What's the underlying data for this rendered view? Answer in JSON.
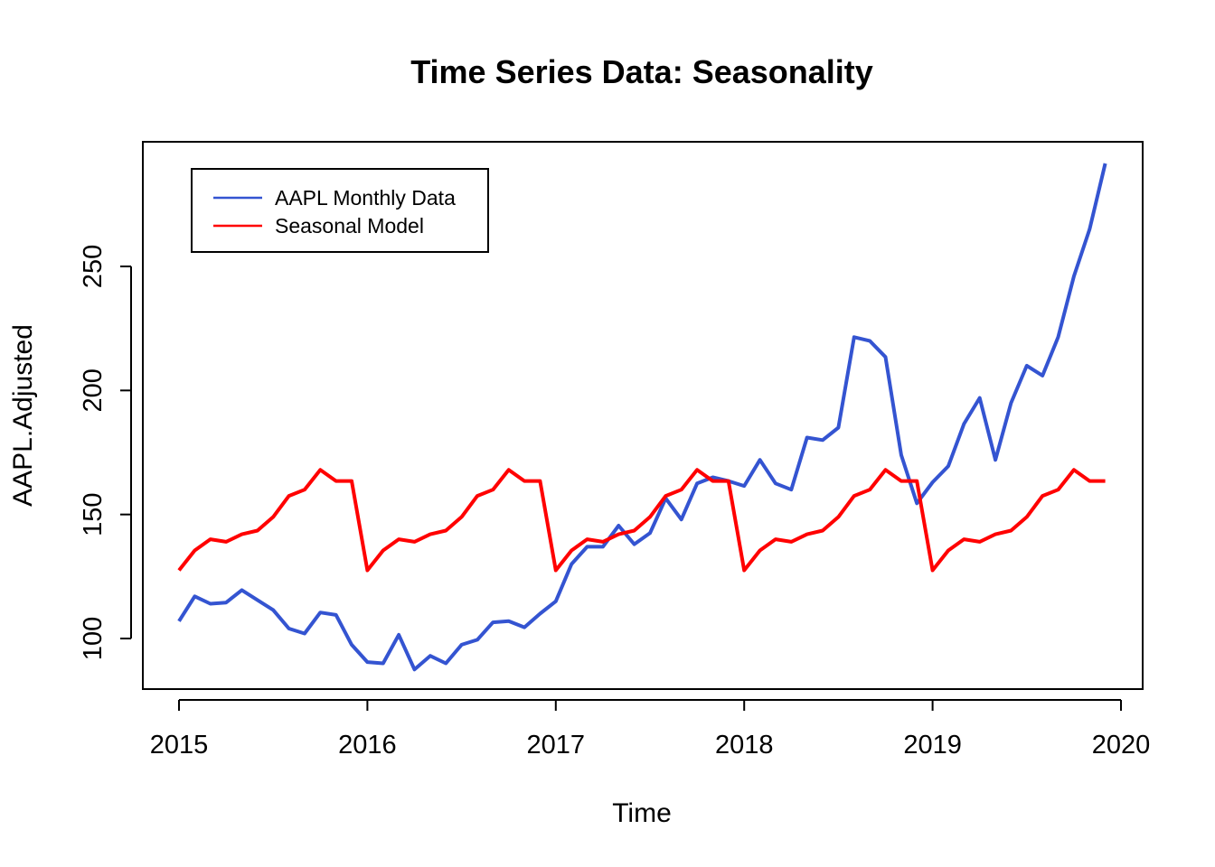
{
  "chart_data": {
    "type": "line",
    "title": "Time Series Data: Seasonality",
    "xlabel": "Time",
    "ylabel": "AAPL.Adjusted",
    "xlim": [
      2014.8,
      2020.1
    ],
    "ylim": [
      80,
      295
    ],
    "x_ticks": [
      2015,
      2016,
      2017,
      2018,
      2019,
      2020
    ],
    "x_tick_labels": [
      "2015",
      "2016",
      "2017",
      "2018",
      "2019",
      "2020"
    ],
    "y_ticks": [
      100,
      150,
      200,
      250
    ],
    "y_tick_labels": [
      "100",
      "150",
      "200",
      "250"
    ],
    "x_start": 2015,
    "x_step": 0.0833333,
    "legend_position": "top-left",
    "grid": false,
    "series": [
      {
        "name": "AAPL Monthly Data",
        "color": "#3454D1",
        "values": [
          107,
          117,
          114,
          114.5,
          119.5,
          115.5,
          111.5,
          104,
          102,
          110.5,
          109.5,
          97.5,
          90.5,
          90,
          101.5,
          87.5,
          93,
          90,
          97.5,
          99.5,
          106.5,
          107,
          104.5,
          110,
          115,
          130,
          137,
          137,
          145.5,
          138,
          142.5,
          156.5,
          148,
          162.5,
          165,
          163.5,
          161.5,
          172,
          162.5,
          160,
          181,
          180,
          185,
          221.5,
          220,
          213.5,
          174,
          154.5,
          163,
          169.5,
          186.5,
          197,
          172,
          195,
          210,
          206,
          221.5,
          246,
          265,
          291.5
        ]
      },
      {
        "name": "Seasonal Model",
        "color": "#FF0000",
        "values": [
          127.5,
          135.5,
          140,
          139,
          142,
          143.5,
          149,
          157.5,
          160,
          168,
          163.5,
          163.5,
          127.5,
          135.5,
          140,
          139,
          142,
          143.5,
          149,
          157.5,
          160,
          168,
          163.5,
          163.5,
          127.5,
          135.5,
          140,
          139,
          142,
          143.5,
          149,
          157.5,
          160,
          168,
          163.5,
          163.5,
          127.5,
          135.5,
          140,
          139,
          142,
          143.5,
          149,
          157.5,
          160,
          168,
          163.5,
          163.5,
          127.5,
          135.5,
          140,
          139,
          142,
          143.5,
          149,
          157.5,
          160,
          168,
          163.5,
          163.5
        ]
      }
    ]
  }
}
